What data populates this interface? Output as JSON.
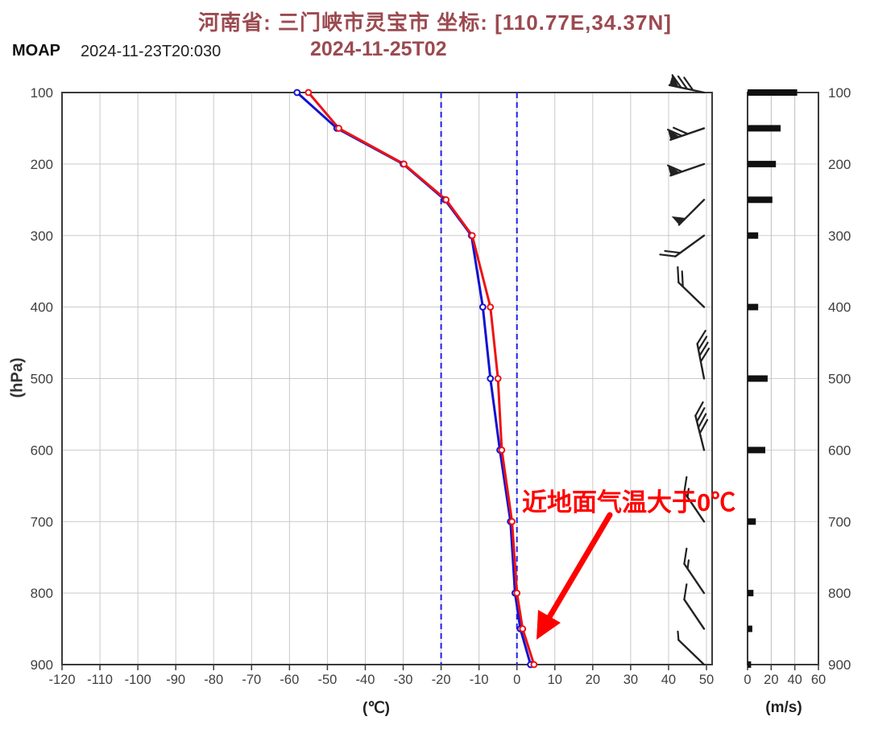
{
  "header": {
    "title": "河南省: 三门峡市灵宝市 坐标: [110.77E,34.37N]",
    "model": "MOAP",
    "base_time": "2024-11-23T20:030",
    "valid_time": "2024-11-25T02",
    "title_color": "#9b4a50"
  },
  "annotation": {
    "text": "近地面气温大于0℃",
    "color": "#ff0000"
  },
  "chart_data": {
    "type": "line",
    "title": "Temperature-pressure profile with wind",
    "xlabel": "(℃)",
    "ylabel": "(hPa)",
    "x_ticks": [
      -120,
      -110,
      -100,
      -90,
      -80,
      -70,
      -60,
      -50,
      -40,
      -30,
      -20,
      -10,
      0,
      10,
      20,
      30,
      40,
      50
    ],
    "xlim": [
      -120,
      51.5
    ],
    "y_ticks": [
      100,
      200,
      300,
      400,
      500,
      600,
      700,
      800,
      900
    ],
    "ylim": [
      100,
      900
    ],
    "grid": true,
    "reference_lines_c": [
      -20,
      0
    ],
    "reference_line_color": "#1f1fe8",
    "levels_hpa": [
      100,
      150,
      200,
      250,
      300,
      400,
      500,
      600,
      700,
      800,
      850,
      900
    ],
    "series": [
      {
        "name": "profile-blue",
        "color": "#1212d2",
        "values_c": [
          -58.0,
          -47.5,
          -30.0,
          -19.0,
          -12.0,
          -9.0,
          -7.0,
          -4.5,
          -1.7,
          -0.5,
          0.9,
          3.6
        ]
      },
      {
        "name": "profile-red",
        "color": "#ee1212",
        "values_c": [
          -55.0,
          -47.0,
          -29.8,
          -18.7,
          -11.8,
          -7.0,
          -5.0,
          -4.0,
          -1.3,
          0.0,
          1.5,
          4.5
        ]
      }
    ],
    "wind": [
      {
        "level_hpa": 100,
        "speed_ms": 42,
        "pennants": 1,
        "full": 3,
        "half": 0,
        "rotation_deg": -78
      },
      {
        "level_hpa": 150,
        "speed_ms": 28,
        "pennants": 1,
        "full": 2,
        "half": 0,
        "rotation_deg": -109
      },
      {
        "level_hpa": 200,
        "speed_ms": 24,
        "pennants": 1,
        "full": 1,
        "half": 0,
        "rotation_deg": -109
      },
      {
        "level_hpa": 250,
        "speed_ms": 21,
        "pennants": 1,
        "full": 0,
        "half": 0,
        "rotation_deg": -135
      },
      {
        "level_hpa": 300,
        "speed_ms": 9,
        "pennants": 0,
        "full": 2,
        "half": 0,
        "rotation_deg": -126
      },
      {
        "level_hpa": 400,
        "speed_ms": 9,
        "pennants": 0,
        "full": 2,
        "half": 0,
        "rotation_deg": -46
      },
      {
        "level_hpa": 500,
        "speed_ms": 17,
        "pennants": 0,
        "full": 4,
        "half": 0,
        "rotation_deg": -11
      },
      {
        "level_hpa": 600,
        "speed_ms": 15,
        "pennants": 0,
        "full": 4,
        "half": 0,
        "rotation_deg": -14
      },
      {
        "level_hpa": 700,
        "speed_ms": 7,
        "pennants": 0,
        "full": 1,
        "half": 1,
        "rotation_deg": -34
      },
      {
        "level_hpa": 800,
        "speed_ms": 5,
        "pennants": 0,
        "full": 1,
        "half": 1,
        "rotation_deg": -34
      },
      {
        "level_hpa": 850,
        "speed_ms": 4,
        "pennants": 0,
        "full": 1,
        "half": 0,
        "rotation_deg": -34
      },
      {
        "level_hpa": 900,
        "speed_ms": 3,
        "pennants": 0,
        "full": 0,
        "half": 1,
        "rotation_deg": -46
      }
    ],
    "wind_bar_panel": {
      "xlabel": "(m/s)",
      "x_ticks": [
        0,
        20,
        40,
        60
      ],
      "xlim": [
        0,
        60
      ],
      "bar_color": "#111111"
    }
  }
}
